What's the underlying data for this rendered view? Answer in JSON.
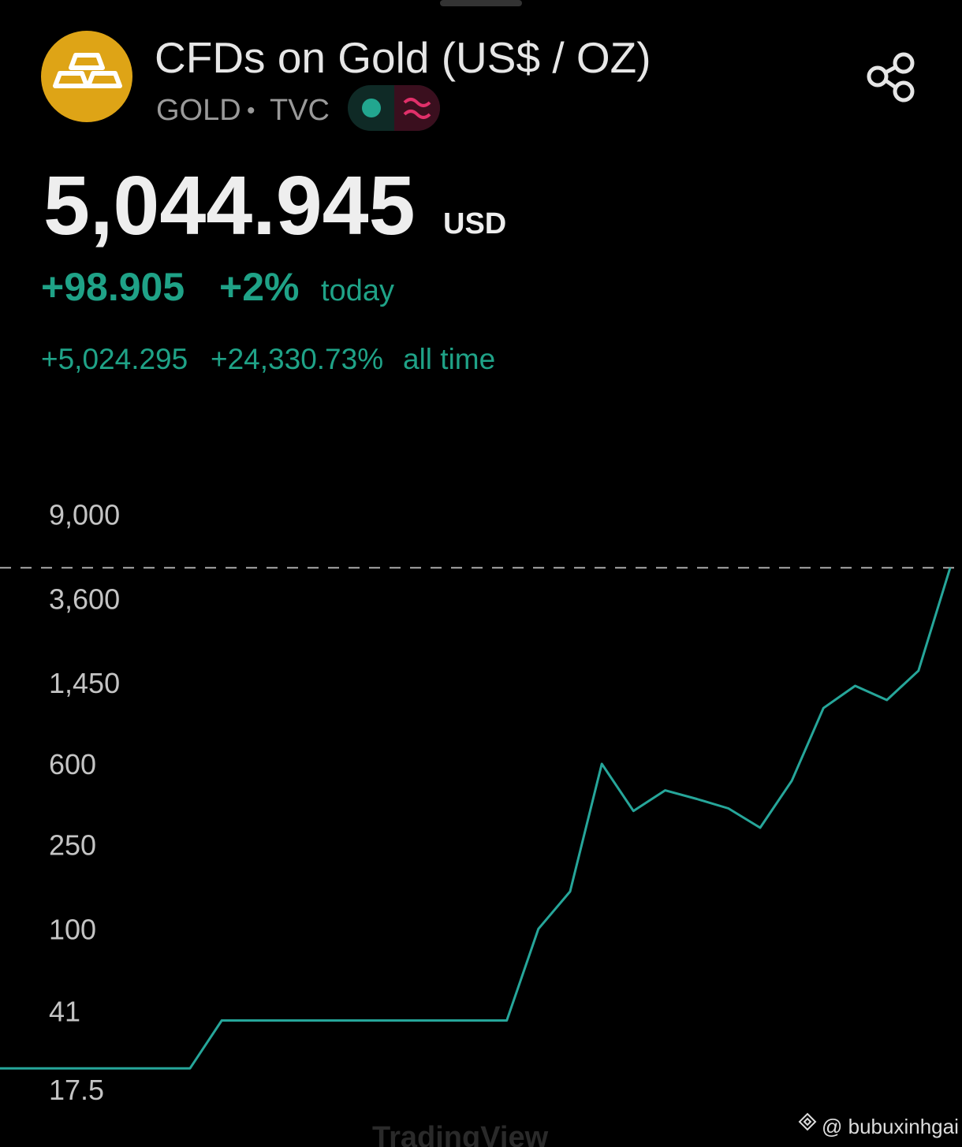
{
  "header": {
    "title": "CFDs on Gold (US$ / OZ)",
    "symbol": "GOLD",
    "separator": "•",
    "exchange": "TVC",
    "price": "5,044.945",
    "currency": "USD",
    "change_today": "+98.905",
    "change_today_pct": "+2%",
    "today_label": "today",
    "change_all": "+5,024.295",
    "change_all_pct": "+24,330.73%",
    "all_time_label": "all time"
  },
  "chart_data": {
    "type": "line",
    "values": [
      22,
      22,
      22,
      22,
      22,
      22,
      22,
      37,
      37,
      37,
      37,
      37,
      37,
      37,
      37,
      37,
      37,
      100,
      150,
      600,
      360,
      450,
      410,
      370,
      300,
      500,
      1100,
      1400,
      1200,
      1650,
      5044.945
    ],
    "color": "#26a69a",
    "log_scale": true,
    "ylim": [
      12,
      12000
    ],
    "yticks": [
      17.5,
      41,
      100,
      250,
      600,
      {
        "value": 1450,
        "label": "1,450"
      },
      {
        "value": 3600,
        "label": "3,600"
      },
      {
        "value": 9000,
        "label": "9,000"
      }
    ],
    "watermark": "TradingView"
  },
  "footer": {
    "credit": "@ bubuxinhgai"
  }
}
